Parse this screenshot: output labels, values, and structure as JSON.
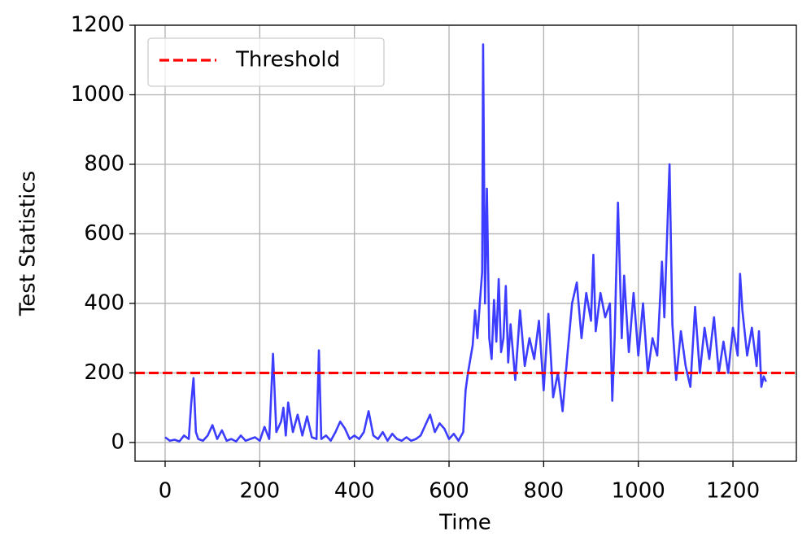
{
  "chart_data": {
    "type": "line",
    "xlabel": "Time",
    "ylabel": "Test Statistics",
    "x": [
      0,
      10,
      20,
      30,
      40,
      50,
      55,
      60,
      65,
      70,
      80,
      90,
      100,
      110,
      120,
      130,
      140,
      150,
      160,
      170,
      180,
      190,
      200,
      210,
      220,
      228,
      235,
      245,
      250,
      255,
      260,
      270,
      280,
      290,
      300,
      310,
      320,
      325,
      330,
      340,
      350,
      360,
      370,
      380,
      390,
      400,
      410,
      420,
      430,
      440,
      450,
      460,
      470,
      480,
      490,
      500,
      510,
      520,
      530,
      540,
      560,
      570,
      580,
      590,
      600,
      610,
      620,
      630,
      635,
      640,
      650,
      655,
      660,
      665,
      670,
      672,
      676,
      680,
      685,
      690,
      695,
      700,
      705,
      710,
      715,
      720,
      725,
      730,
      740,
      750,
      760,
      770,
      780,
      790,
      800,
      810,
      820,
      830,
      840,
      850,
      860,
      870,
      880,
      890,
      900,
      905,
      910,
      920,
      930,
      940,
      945,
      950,
      957,
      965,
      970,
      980,
      990,
      1000,
      1010,
      1020,
      1030,
      1040,
      1050,
      1055,
      1060,
      1066,
      1072,
      1080,
      1090,
      1100,
      1110,
      1120,
      1130,
      1140,
      1150,
      1160,
      1170,
      1180,
      1190,
      1200,
      1210,
      1215,
      1220,
      1230,
      1240,
      1250,
      1255,
      1260,
      1265,
      1270
    ],
    "series": [
      {
        "color": "#3333ff",
        "values": [
          15,
          5,
          8,
          3,
          20,
          10,
          110,
          185,
          30,
          10,
          5,
          20,
          50,
          10,
          35,
          5,
          10,
          3,
          20,
          5,
          10,
          15,
          5,
          45,
          10,
          255,
          30,
          60,
          100,
          20,
          115,
          30,
          80,
          20,
          75,
          15,
          10,
          265,
          10,
          20,
          5,
          30,
          60,
          40,
          10,
          20,
          10,
          30,
          90,
          20,
          10,
          30,
          5,
          25,
          10,
          5,
          15,
          5,
          10,
          20,
          80,
          30,
          55,
          40,
          10,
          25,
          5,
          30,
          150,
          200,
          280,
          380,
          300,
          400,
          490,
          1145,
          400,
          730,
          300,
          240,
          410,
          290,
          470,
          260,
          300,
          450,
          230,
          340,
          180,
          380,
          220,
          300,
          240,
          350,
          150,
          370,
          130,
          200,
          90,
          250,
          400,
          460,
          300,
          430,
          350,
          540,
          320,
          430,
          360,
          400,
          120,
          300,
          690,
          300,
          480,
          260,
          430,
          250,
          400,
          200,
          300,
          250,
          520,
          360,
          560,
          800,
          340,
          180,
          320,
          220,
          160,
          390,
          200,
          330,
          240,
          360,
          200,
          290,
          200,
          330,
          250,
          485,
          380,
          250,
          330,
          220,
          320,
          160,
          190,
          175
        ]
      }
    ],
    "hlines": [
      {
        "name": "Threshold",
        "value": 200,
        "color": "#ff0000"
      }
    ],
    "xlim": [
      -63.6,
      1334
    ],
    "ylim": [
      -54,
      1200
    ],
    "xticks": [
      0,
      200,
      400,
      600,
      800,
      1000,
      1200
    ],
    "yticks": [
      0,
      200,
      400,
      600,
      800,
      1000,
      1200
    ],
    "grid": true,
    "legend": "upper left"
  }
}
